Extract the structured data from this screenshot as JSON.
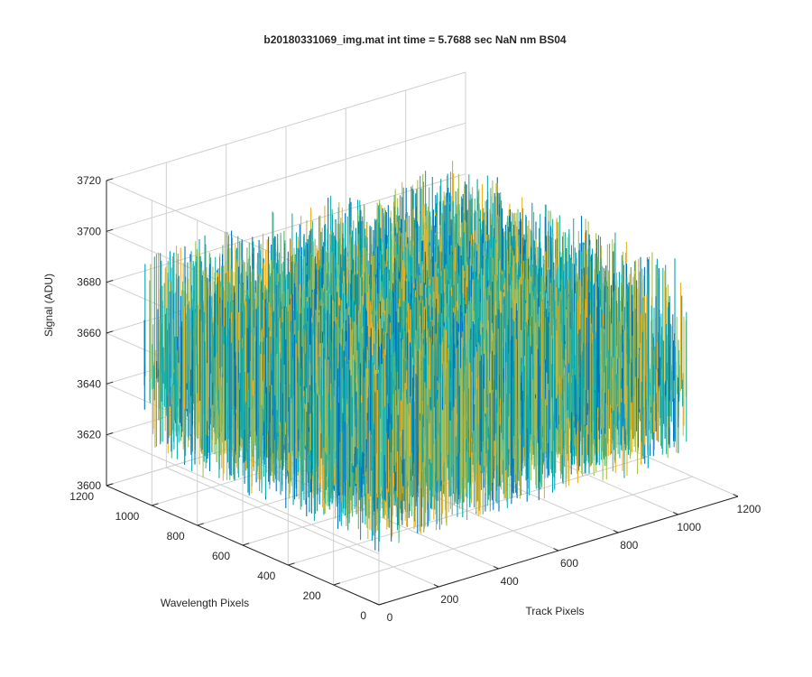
{
  "chart_data": {
    "type": "surface",
    "title": "b20180331069_img.mat int time = 5.7688 sec  NaN nm BS04",
    "xlabel": "Track Pixels",
    "ylabel": "Wavelength Pixels",
    "zlabel": "Signal (ADU)",
    "xlim": [
      0,
      1200
    ],
    "ylim": [
      0,
      1200
    ],
    "zlim": [
      3600,
      3720
    ],
    "x_ticks": [
      "0",
      "200",
      "400",
      "600",
      "800",
      "1000",
      "1200"
    ],
    "y_ticks": [
      "0",
      "200",
      "400",
      "600",
      "800",
      "1000",
      "1200"
    ],
    "z_ticks": [
      "3600",
      "3620",
      "3640",
      "3660",
      "3680",
      "3700",
      "3720"
    ],
    "x_extent": [
      0,
      1024
    ],
    "y_extent": [
      0,
      1024
    ],
    "signal_level": 3650,
    "noise_range": [
      3620,
      3700
    ],
    "grid": true,
    "colors": [
      "#0072bd",
      "#00a3b4",
      "#17b0a8",
      "#5cb57e",
      "#a9bd52",
      "#edb120"
    ],
    "line_color": "#cfcfcf",
    "axis_color": "#262626"
  }
}
